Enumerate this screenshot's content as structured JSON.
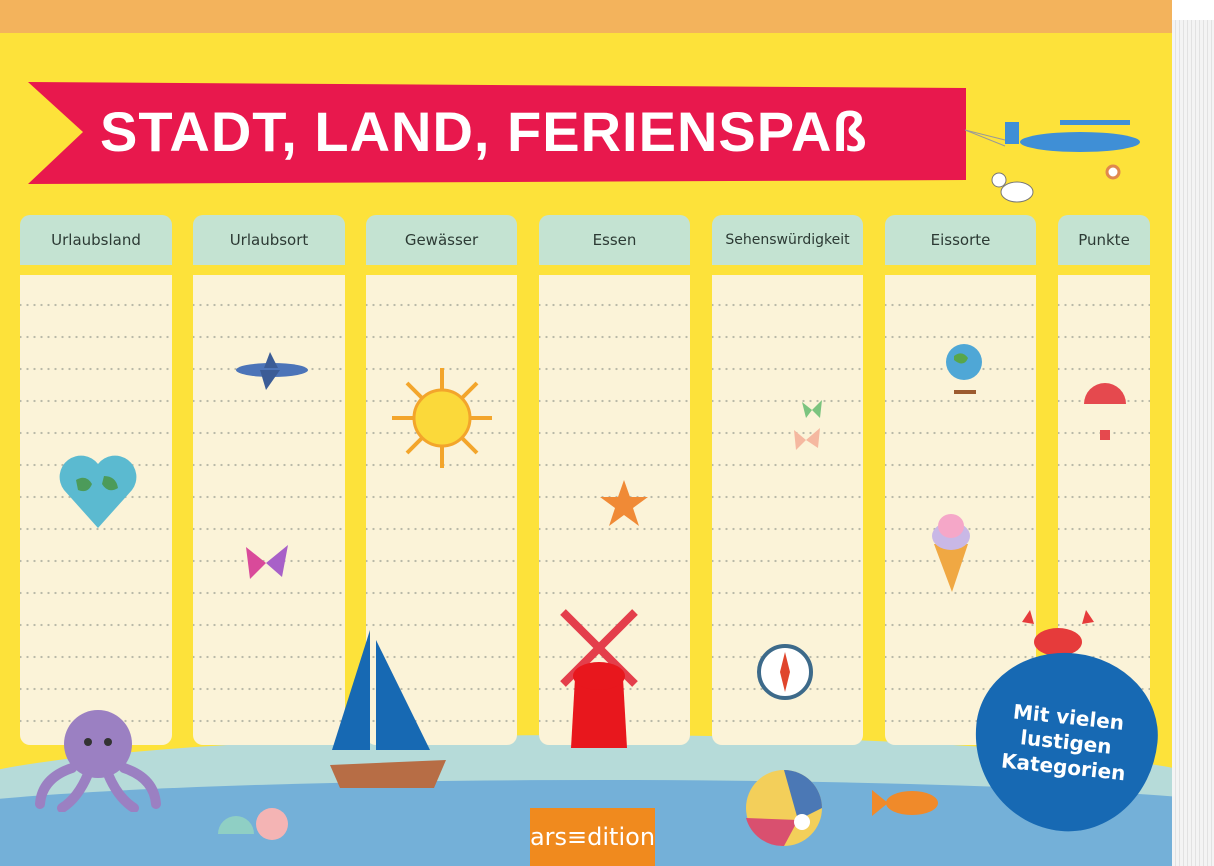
{
  "title": "STADT, LAND, FERIENSPAß",
  "columns": [
    {
      "label": "Urlaubsland"
    },
    {
      "label": "Urlaubsort"
    },
    {
      "label": "Gewässer"
    },
    {
      "label": "Essen"
    },
    {
      "label": "Sehenswürdigkeit"
    },
    {
      "label": "Eissorte"
    },
    {
      "label": "Punkte"
    }
  ],
  "badge": {
    "line1": "Mit vielen",
    "line2": "lustigen",
    "line3": "Kategorien"
  },
  "publisher": "ars≡dition",
  "colors": {
    "yellow": "#fde23a",
    "banner": "#e8184d",
    "header": "#c4e3d2",
    "badge": "#1769b3",
    "logo": "#f08a1e"
  }
}
